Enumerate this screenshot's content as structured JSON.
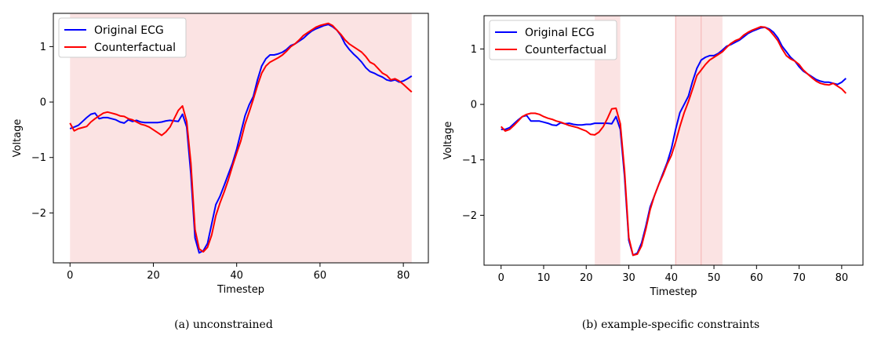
{
  "chart_data": [
    {
      "type": "line",
      "caption": "(a) unconstrained",
      "xlabel": "Timestep",
      "ylabel": "Voltage",
      "xlim": [
        -4,
        86
      ],
      "ylim": [
        -2.9,
        1.6
      ],
      "xticks": [
        0,
        20,
        40,
        60,
        80
      ],
      "yticks": [
        1,
        0,
        -1,
        -2
      ],
      "ytick_labels": [
        "1",
        "0",
        "−1",
        "−2"
      ],
      "grid": false,
      "legend_position": "top-left",
      "highlight_color": "#fbe3e3",
      "highlights": [
        [
          0,
          82
        ]
      ],
      "series": [
        {
          "name": "Original ECG",
          "color": "#0000ff",
          "x": [
            0,
            1,
            2,
            3,
            4,
            5,
            6,
            7,
            8,
            9,
            10,
            11,
            12,
            13,
            14,
            15,
            16,
            17,
            18,
            19,
            20,
            21,
            22,
            23,
            24,
            25,
            26,
            27,
            28,
            29,
            30,
            31,
            32,
            33,
            34,
            35,
            36,
            37,
            38,
            39,
            40,
            41,
            42,
            43,
            44,
            45,
            46,
            47,
            48,
            49,
            50,
            51,
            52,
            53,
            54,
            55,
            56,
            57,
            58,
            59,
            60,
            61,
            62,
            63,
            64,
            65,
            66,
            67,
            68,
            69,
            70,
            71,
            72,
            73,
            74,
            75,
            76,
            77,
            78,
            79,
            80,
            81,
            82
          ],
          "values": [
            -0.48,
            -0.45,
            -0.42,
            -0.35,
            -0.28,
            -0.22,
            -0.2,
            -0.3,
            -0.28,
            -0.28,
            -0.3,
            -0.32,
            -0.36,
            -0.38,
            -0.32,
            -0.35,
            -0.33,
            -0.36,
            -0.37,
            -0.37,
            -0.37,
            -0.37,
            -0.36,
            -0.34,
            -0.33,
            -0.34,
            -0.35,
            -0.22,
            -0.45,
            -1.3,
            -2.45,
            -2.72,
            -2.68,
            -2.55,
            -2.2,
            -1.85,
            -1.7,
            -1.5,
            -1.3,
            -1.1,
            -0.85,
            -0.55,
            -0.25,
            -0.05,
            0.1,
            0.4,
            0.65,
            0.78,
            0.85,
            0.85,
            0.87,
            0.9,
            0.95,
            1.02,
            1.05,
            1.1,
            1.15,
            1.22,
            1.28,
            1.32,
            1.35,
            1.38,
            1.4,
            1.36,
            1.3,
            1.2,
            1.05,
            0.95,
            0.87,
            0.8,
            0.72,
            0.62,
            0.55,
            0.52,
            0.48,
            0.45,
            0.4,
            0.38,
            0.4,
            0.36,
            0.38,
            0.42,
            0.47
          ]
        },
        {
          "name": "Counterfactual",
          "color": "#ff0000",
          "x": [
            0,
            1,
            2,
            3,
            4,
            5,
            6,
            7,
            8,
            9,
            10,
            11,
            12,
            13,
            14,
            15,
            16,
            17,
            18,
            19,
            20,
            21,
            22,
            23,
            24,
            25,
            26,
            27,
            28,
            29,
            30,
            31,
            32,
            33,
            34,
            35,
            36,
            37,
            38,
            39,
            40,
            41,
            42,
            43,
            44,
            45,
            46,
            47,
            48,
            49,
            50,
            51,
            52,
            53,
            54,
            55,
            56,
            57,
            58,
            59,
            60,
            61,
            62,
            63,
            64,
            65,
            66,
            67,
            68,
            69,
            70,
            71,
            72,
            73,
            74,
            75,
            76,
            77,
            78,
            79,
            80,
            81,
            82
          ],
          "values": [
            -0.38,
            -0.52,
            -0.48,
            -0.46,
            -0.44,
            -0.36,
            -0.3,
            -0.25,
            -0.2,
            -0.18,
            -0.2,
            -0.22,
            -0.25,
            -0.26,
            -0.3,
            -0.32,
            -0.36,
            -0.4,
            -0.42,
            -0.45,
            -0.5,
            -0.55,
            -0.6,
            -0.54,
            -0.45,
            -0.3,
            -0.15,
            -0.07,
            -0.35,
            -1.1,
            -2.3,
            -2.65,
            -2.7,
            -2.62,
            -2.4,
            -2.05,
            -1.82,
            -1.62,
            -1.4,
            -1.15,
            -0.92,
            -0.7,
            -0.4,
            -0.18,
            0.05,
            0.3,
            0.52,
            0.65,
            0.72,
            0.76,
            0.8,
            0.85,
            0.92,
            1.0,
            1.05,
            1.12,
            1.2,
            1.25,
            1.3,
            1.35,
            1.38,
            1.4,
            1.42,
            1.38,
            1.3,
            1.22,
            1.12,
            1.05,
            1.0,
            0.95,
            0.9,
            0.82,
            0.72,
            0.68,
            0.6,
            0.52,
            0.48,
            0.4,
            0.42,
            0.38,
            0.32,
            0.25,
            0.18
          ]
        }
      ]
    },
    {
      "type": "line",
      "caption": "(b) example-specific constraints",
      "xlabel": "Timestep",
      "ylabel": "Voltage",
      "xlim": [
        -4,
        85
      ],
      "ylim": [
        -2.9,
        1.6
      ],
      "xticks": [
        0,
        10,
        20,
        30,
        40,
        50,
        60,
        70,
        80
      ],
      "yticks": [
        1,
        0,
        -1,
        -2
      ],
      "ytick_labels": [
        "1",
        "0",
        "−1",
        "−2"
      ],
      "grid": false,
      "legend_position": "top-left",
      "highlight_color": "#fbe3e3",
      "highlights": [
        [
          22,
          28
        ],
        [
          41,
          47
        ],
        [
          47,
          52
        ]
      ],
      "series": [
        {
          "name": "Original ECG",
          "color": "#0000ff",
          "x": [
            0,
            1,
            2,
            3,
            4,
            5,
            6,
            7,
            8,
            9,
            10,
            11,
            12,
            13,
            14,
            15,
            16,
            17,
            18,
            19,
            20,
            21,
            22,
            23,
            24,
            25,
            26,
            27,
            28,
            29,
            30,
            31,
            32,
            33,
            34,
            35,
            36,
            37,
            38,
            39,
            40,
            41,
            42,
            43,
            44,
            45,
            46,
            47,
            48,
            49,
            50,
            51,
            52,
            53,
            54,
            55,
            56,
            57,
            58,
            59,
            60,
            61,
            62,
            63,
            64,
            65,
            66,
            67,
            68,
            69,
            70,
            71,
            72,
            73,
            74,
            75,
            76,
            77,
            78,
            79,
            80,
            81
          ],
          "values": [
            -0.45,
            -0.45,
            -0.42,
            -0.35,
            -0.28,
            -0.22,
            -0.2,
            -0.3,
            -0.3,
            -0.3,
            -0.32,
            -0.34,
            -0.37,
            -0.38,
            -0.33,
            -0.35,
            -0.34,
            -0.36,
            -0.37,
            -0.37,
            -0.36,
            -0.36,
            -0.34,
            -0.34,
            -0.34,
            -0.34,
            -0.35,
            -0.22,
            -0.45,
            -1.3,
            -2.45,
            -2.72,
            -2.68,
            -2.5,
            -2.2,
            -1.85,
            -1.65,
            -1.45,
            -1.25,
            -1.05,
            -0.8,
            -0.45,
            -0.15,
            0.0,
            0.15,
            0.42,
            0.65,
            0.8,
            0.85,
            0.88,
            0.88,
            0.92,
            0.98,
            1.05,
            1.08,
            1.12,
            1.16,
            1.22,
            1.28,
            1.32,
            1.35,
            1.38,
            1.39,
            1.36,
            1.3,
            1.2,
            1.05,
            0.95,
            0.85,
            0.78,
            0.68,
            0.6,
            0.55,
            0.5,
            0.45,
            0.42,
            0.4,
            0.4,
            0.38,
            0.36,
            0.4,
            0.47
          ]
        },
        {
          "name": "Counterfactual",
          "color": "#ff0000",
          "x": [
            0,
            1,
            2,
            3,
            4,
            5,
            6,
            7,
            8,
            9,
            10,
            11,
            12,
            13,
            14,
            15,
            16,
            17,
            18,
            19,
            20,
            21,
            22,
            23,
            24,
            25,
            26,
            27,
            28,
            29,
            30,
            31,
            32,
            33,
            34,
            35,
            36,
            37,
            38,
            39,
            40,
            41,
            42,
            43,
            44,
            45,
            46,
            47,
            48,
            49,
            50,
            51,
            52,
            53,
            54,
            55,
            56,
            57,
            58,
            59,
            60,
            61,
            62,
            63,
            64,
            65,
            66,
            67,
            68,
            69,
            70,
            71,
            72,
            73,
            74,
            75,
            76,
            77,
            78,
            79,
            80,
            81
          ],
          "values": [
            -0.4,
            -0.48,
            -0.45,
            -0.38,
            -0.3,
            -0.22,
            -0.18,
            -0.16,
            -0.16,
            -0.18,
            -0.22,
            -0.25,
            -0.27,
            -0.3,
            -0.32,
            -0.35,
            -0.38,
            -0.4,
            -0.42,
            -0.45,
            -0.48,
            -0.54,
            -0.55,
            -0.5,
            -0.4,
            -0.25,
            -0.08,
            -0.07,
            -0.35,
            -1.2,
            -2.4,
            -2.72,
            -2.7,
            -2.55,
            -2.25,
            -1.9,
            -1.65,
            -1.45,
            -1.28,
            -1.08,
            -0.92,
            -0.68,
            -0.4,
            -0.15,
            0.05,
            0.28,
            0.52,
            0.62,
            0.72,
            0.8,
            0.85,
            0.9,
            0.95,
            1.03,
            1.1,
            1.15,
            1.18,
            1.25,
            1.3,
            1.34,
            1.37,
            1.4,
            1.39,
            1.34,
            1.25,
            1.15,
            1.0,
            0.88,
            0.82,
            0.78,
            0.72,
            0.62,
            0.55,
            0.48,
            0.42,
            0.38,
            0.36,
            0.35,
            0.38,
            0.33,
            0.28,
            0.2
          ]
        }
      ]
    }
  ]
}
